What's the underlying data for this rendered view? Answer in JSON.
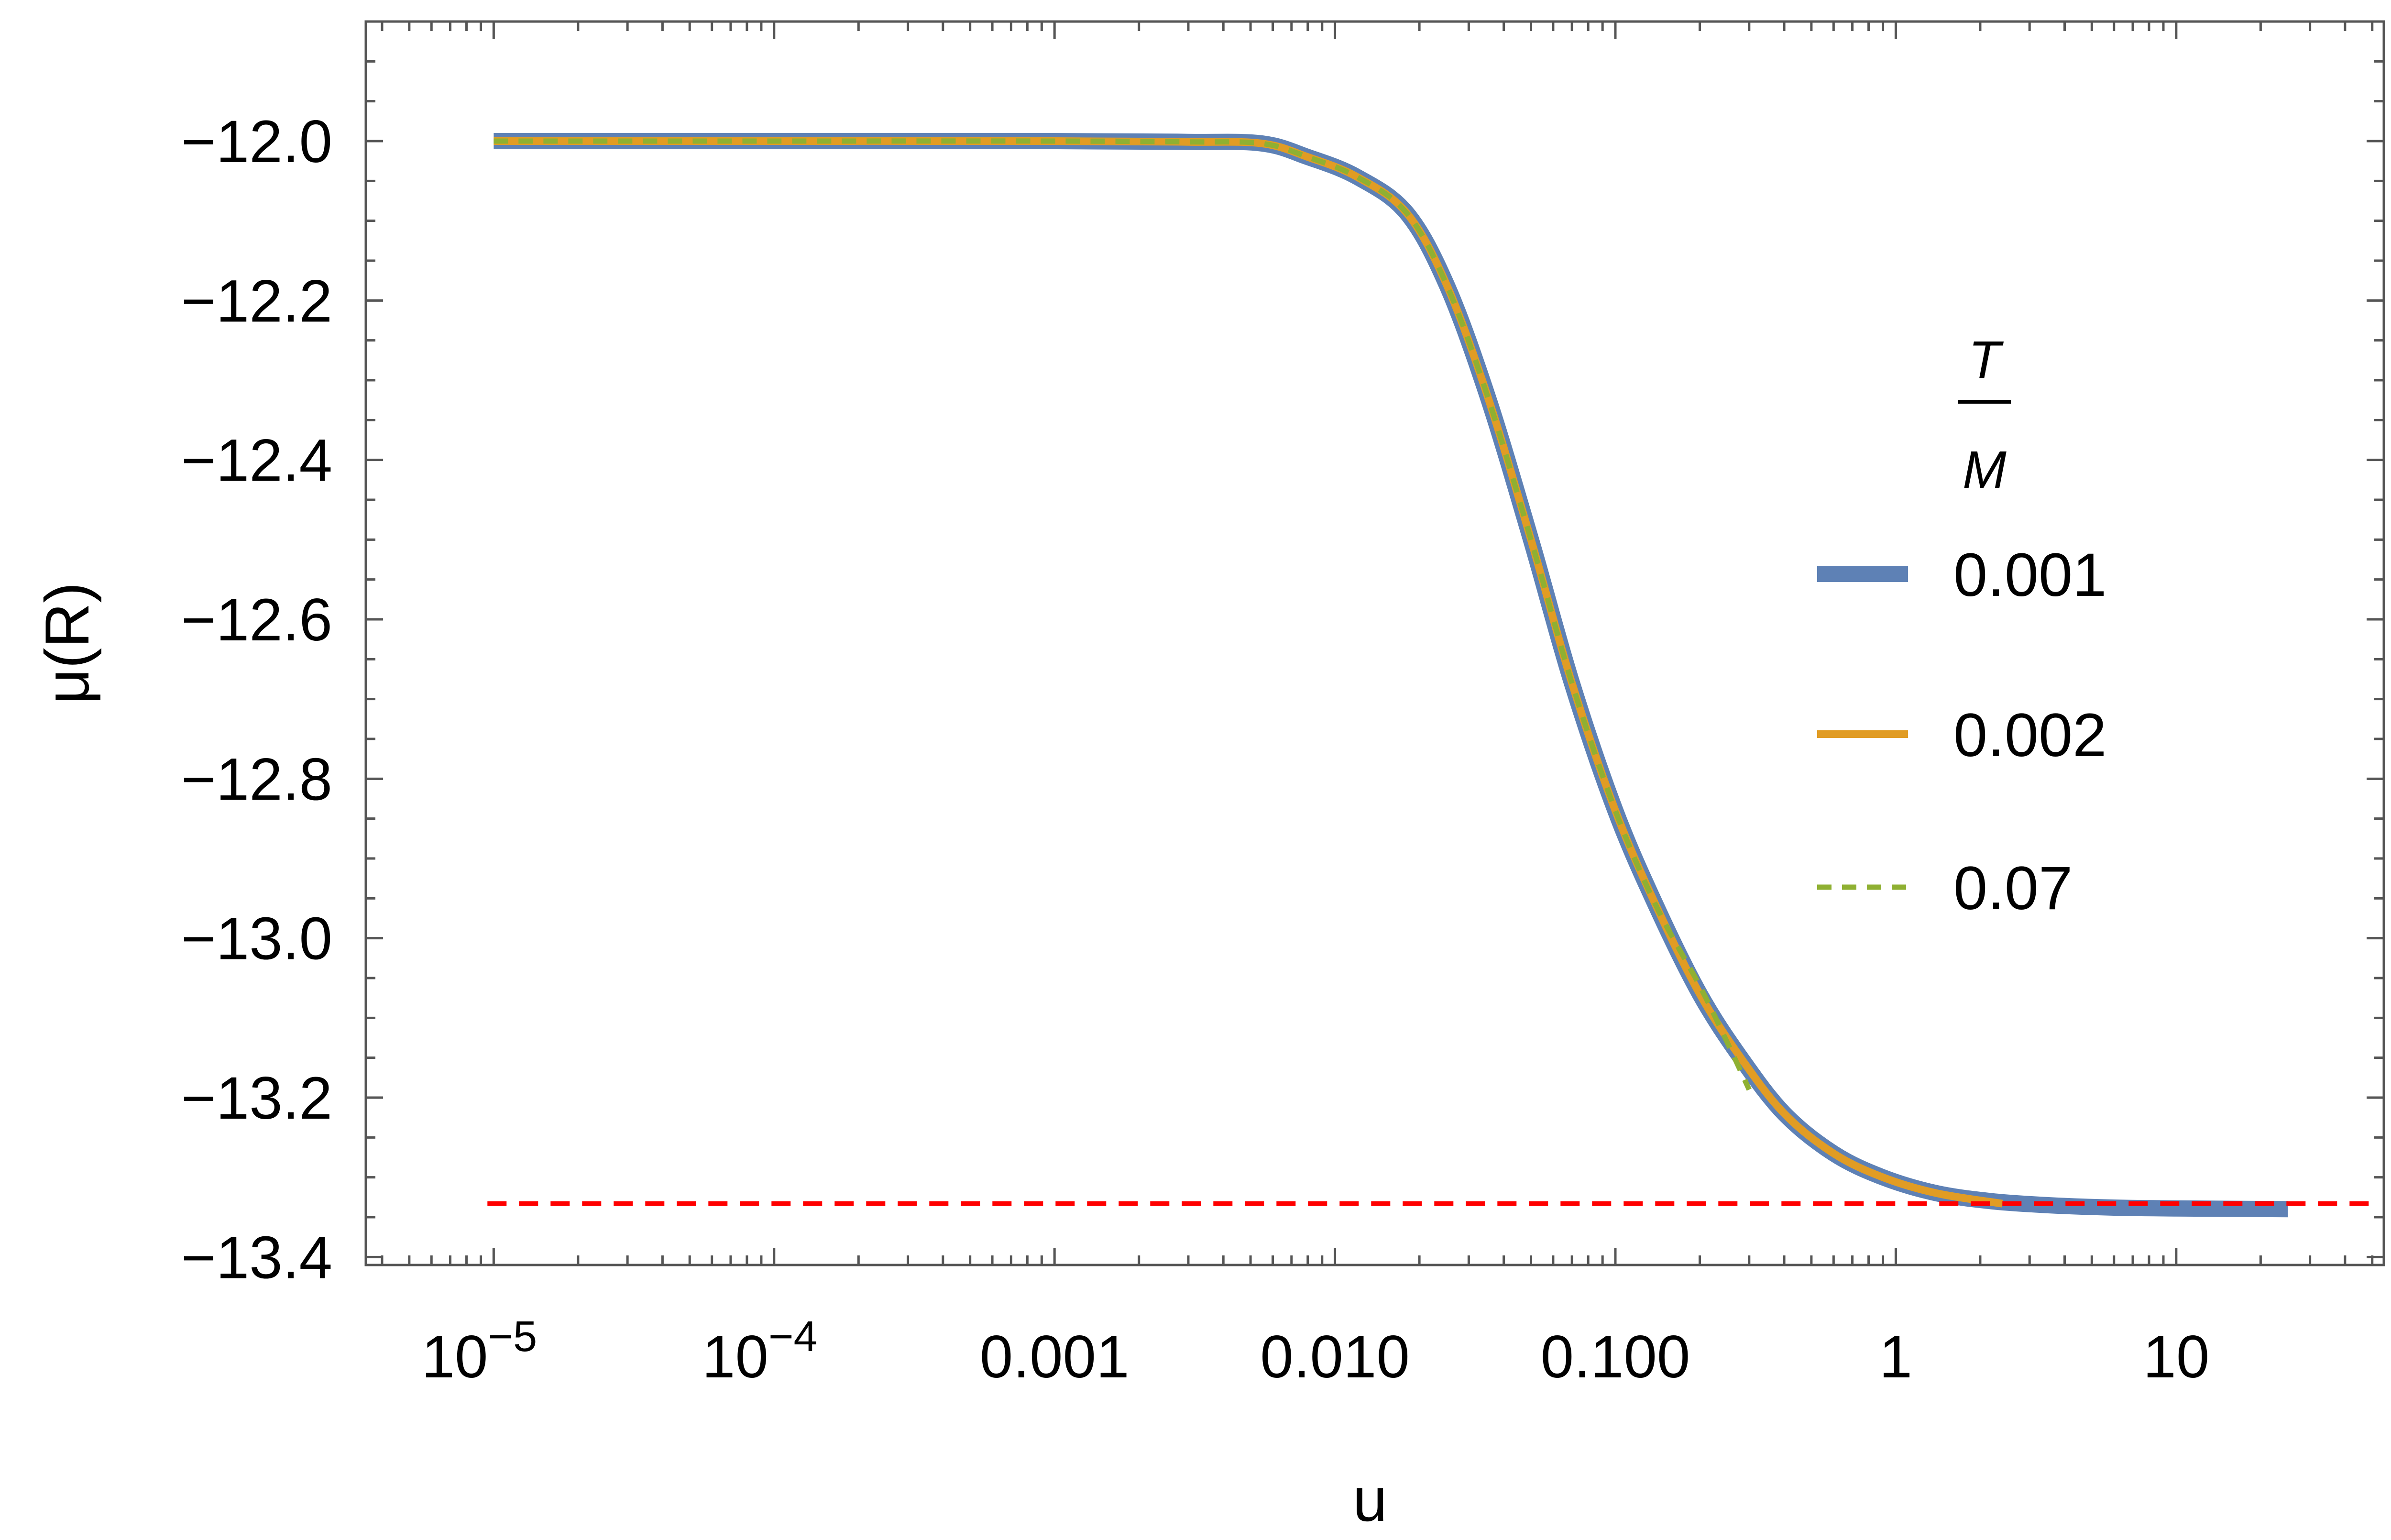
{
  "chart_data": {
    "type": "line",
    "title": "",
    "xlabel": "u",
    "ylabel": "μ(R)",
    "xscale": "log",
    "xlim": [
      3.5e-06,
      55
    ],
    "ylim": [
      -13.41,
      -11.85
    ],
    "grid": false,
    "frame": true,
    "legend_position": "right",
    "legend_title": {
      "numerator": "T",
      "denominator": "M"
    },
    "x_tick_labels": [
      {
        "value": 1e-05,
        "base": "10",
        "exp": "−5"
      },
      {
        "value": 0.0001,
        "base": "10",
        "exp": "−4"
      },
      {
        "value": 0.001,
        "text": "0.001"
      },
      {
        "value": 0.01,
        "text": "0.010"
      },
      {
        "value": 0.1,
        "text": "0.100"
      },
      {
        "value": 1,
        "text": "1"
      },
      {
        "value": 10,
        "text": "10"
      }
    ],
    "y_ticks": [
      -12.0,
      -12.2,
      -12.4,
      -12.6,
      -12.8,
      -13.0,
      -13.2,
      -13.4
    ],
    "y_tick_labels": [
      "−12.0",
      "−12.2",
      "−12.4",
      "−12.6",
      "−12.8",
      "−13.0",
      "−13.2",
      "−13.4"
    ],
    "series": [
      {
        "name": "0.001",
        "color": "#5e81b5",
        "style": "solid-thick",
        "x": [
          1e-05,
          0.0001,
          0.001,
          0.003,
          0.0055,
          0.008,
          0.012,
          0.018,
          0.025,
          0.035,
          0.05,
          0.07,
          0.1,
          0.14,
          0.2,
          0.28,
          0.4,
          0.6,
          0.9,
          1.4,
          2.2,
          3.5,
          6,
          10,
          25
        ],
        "y": [
          -12.0,
          -12.0,
          -12.0,
          -12.001,
          -12.003,
          -12.02,
          -12.045,
          -12.09,
          -12.18,
          -12.32,
          -12.5,
          -12.68,
          -12.84,
          -12.96,
          -13.07,
          -13.15,
          -13.22,
          -13.27,
          -13.3,
          -13.32,
          -13.33,
          -13.335,
          -13.338,
          -13.339,
          -13.34
        ]
      },
      {
        "name": "0.002",
        "color": "#e19c24",
        "style": "solid",
        "x": [
          1e-05,
          0.0001,
          0.001,
          0.003,
          0.0055,
          0.008,
          0.012,
          0.018,
          0.025,
          0.035,
          0.05,
          0.07,
          0.1,
          0.14,
          0.2,
          0.28,
          0.4,
          0.6,
          0.9,
          1.4,
          2.4
        ],
        "y": [
          -12.0,
          -12.0,
          -12.0,
          -12.001,
          -12.003,
          -12.02,
          -12.045,
          -12.09,
          -12.18,
          -12.32,
          -12.5,
          -12.68,
          -12.84,
          -12.96,
          -13.07,
          -13.15,
          -13.22,
          -13.27,
          -13.3,
          -13.32,
          -13.333
        ]
      },
      {
        "name": "0.07",
        "color": "#8fb032",
        "style": "dashed",
        "x": [
          1e-05,
          0.0001,
          0.001,
          0.003,
          0.0055,
          0.008,
          0.012,
          0.018,
          0.025,
          0.035,
          0.05,
          0.07,
          0.1,
          0.14,
          0.2,
          0.25,
          0.3
        ],
        "y": [
          -12.0,
          -12.0,
          -12.0,
          -12.001,
          -12.003,
          -12.02,
          -12.045,
          -12.09,
          -12.18,
          -12.32,
          -12.5,
          -12.68,
          -12.84,
          -12.96,
          -13.06,
          -13.13,
          -13.19
        ]
      }
    ],
    "reference_line": {
      "y": -13.333,
      "color": "#ff0000",
      "style": "dashed"
    }
  }
}
